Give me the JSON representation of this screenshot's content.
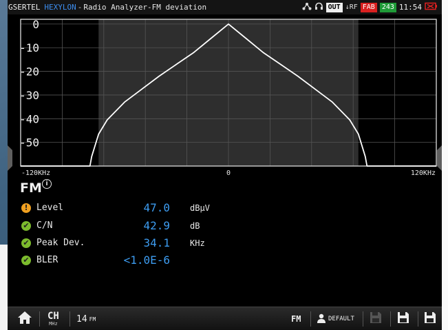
{
  "status": {
    "brand": "GSERTEL",
    "product": "HEXYLON",
    "separator": "-",
    "title": "Radio Analyzer-FM deviation",
    "out_label": "OUT",
    "rf_label": "↓RF",
    "fab_label": "FAB",
    "battery_value": "243",
    "time": "11:54"
  },
  "chart_data": {
    "type": "line",
    "title": "",
    "y_ticks": [
      "0",
      "-10",
      "-20",
      "-30",
      "-40",
      "-50"
    ],
    "ylim": [
      -60,
      2
    ],
    "x_labels": {
      "left": "-120KHz",
      "center": "0",
      "right": "120KHz"
    },
    "xlim": [
      -120,
      120
    ],
    "x_unit": "KHz",
    "shaded_band": [
      -75,
      75
    ],
    "grid": true,
    "series": [
      {
        "x": [
          -120,
          -80,
          -79,
          -75,
          -70,
          -60,
          -50,
          -40,
          -30,
          -20,
          -10,
          0,
          10,
          20,
          30,
          40,
          50,
          60,
          70,
          75,
          79,
          80,
          120
        ],
        "values": [
          -61,
          -61,
          -56,
          -46.5,
          -40.5,
          -33,
          -27.5,
          -22,
          -17,
          -12,
          -6,
          0,
          -6,
          -12,
          -17,
          -22,
          -27.5,
          -33,
          -40.5,
          -46.5,
          -56,
          -61,
          -61
        ]
      }
    ],
    "colors": {
      "line": "#ffffff",
      "band": "#2e2e2e",
      "grid": "#555555"
    }
  },
  "mode": {
    "label": "FM",
    "info": "i"
  },
  "measurements": [
    {
      "label": "Level",
      "value": "47.0",
      "unit": "dBµV",
      "status": "warn",
      "icon": "!"
    },
    {
      "label": "C/N",
      "value": "42.9",
      "unit": "dB",
      "status": "ok",
      "icon": "✔"
    },
    {
      "label": "Peak Dev.",
      "value": "34.1",
      "unit": "KHz",
      "status": "ok",
      "icon": "✔"
    },
    {
      "label": "BLER",
      "value": "<1.0E-6",
      "unit": "",
      "status": "ok",
      "icon": "✔"
    }
  ],
  "bottom": {
    "ch_label": "CH",
    "ch_sub": "MHz",
    "channel": "14",
    "channel_mode": "FM",
    "mode_label": "FM",
    "profile": "DEFAULT"
  }
}
